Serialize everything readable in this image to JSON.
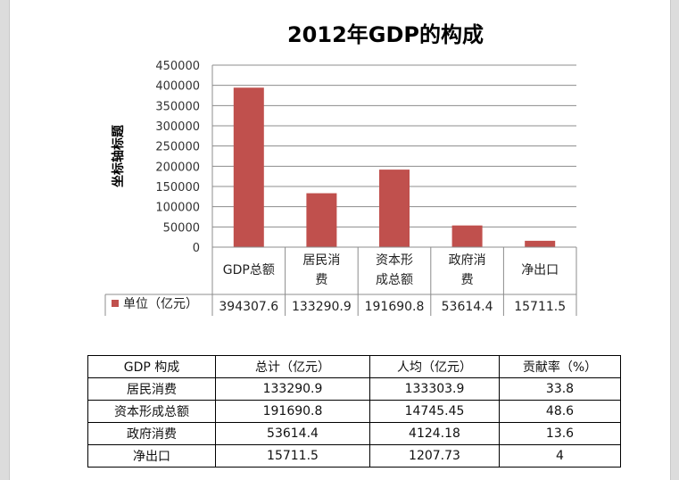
{
  "chart_data": {
    "type": "bar",
    "title": "2012年GDP的构成",
    "ylabel": "坐标轴标题",
    "xlabel": "",
    "ylim": [
      0,
      450000
    ],
    "yticks": [
      0,
      50000,
      100000,
      150000,
      200000,
      250000,
      300000,
      350000,
      400000,
      450000
    ],
    "grid": true,
    "categories": [
      [
        "GDP总额"
      ],
      [
        "居民消",
        "费"
      ],
      [
        "资本形",
        "成总额"
      ],
      [
        "政府消",
        "费"
      ],
      [
        "净出口"
      ]
    ],
    "series": [
      {
        "name": "单位（亿元）",
        "color": "#c0504d",
        "values": [
          394307.6,
          133290.9,
          191690.8,
          53614.4,
          15711.5
        ],
        "labels": [
          "394307.6",
          "133290.9",
          "191690.8",
          "53614.4",
          "15711.5"
        ]
      }
    ],
    "data_table": true
  },
  "table": {
    "headers": [
      "GDP 构成",
      "总计（亿元）",
      "人均（亿元）",
      "贡献率（%）"
    ],
    "rows": [
      [
        "居民消费",
        "133290.9",
        "133303.9",
        "33.8"
      ],
      [
        "资本形成总额",
        "191690.8",
        "14745.45",
        "48.6"
      ],
      [
        "政府消费",
        "53614.4",
        "4124.18",
        "13.6"
      ],
      [
        "净出口",
        "15711.5",
        "1207.73",
        "4"
      ]
    ]
  }
}
